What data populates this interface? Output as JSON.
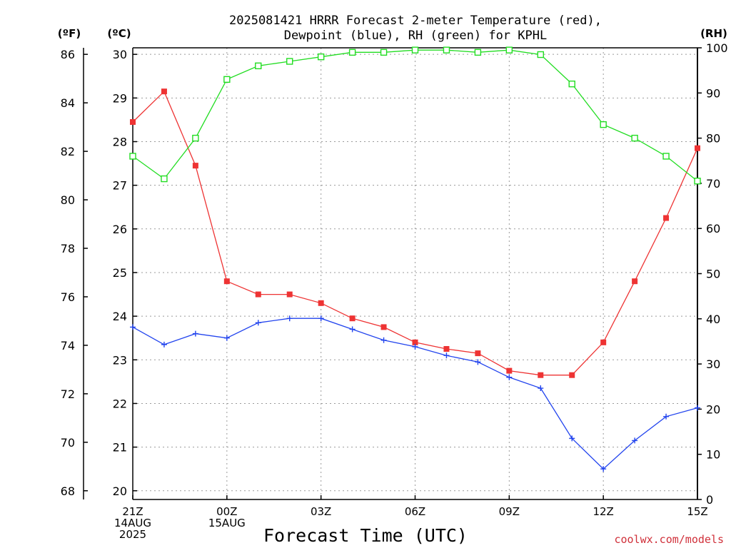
{
  "chart_data": {
    "type": "line",
    "title_lines": [
      "2025081421 HRRR Forecast 2-meter Temperature (red),",
      "Dewpoint (blue), RH (green) for KPHL"
    ],
    "units": {
      "fahrenheit": "(ºF)",
      "celsius": "(ºC)",
      "rh": "(RH)"
    },
    "xlabel": "Forecast Time (UTC)",
    "credit": "coolwx.com/models",
    "x_ticks": [
      {
        "hour": 0,
        "lines": [
          "21Z",
          "14AUG",
          "2025"
        ]
      },
      {
        "hour": 3,
        "lines": [
          "00Z",
          "15AUG"
        ]
      },
      {
        "hour": 6,
        "lines": [
          "03Z"
        ]
      },
      {
        "hour": 9,
        "lines": [
          "06Z"
        ]
      },
      {
        "hour": 12,
        "lines": [
          "09Z"
        ]
      },
      {
        "hour": 15,
        "lines": [
          "12Z"
        ]
      },
      {
        "hour": 18,
        "lines": [
          "15Z"
        ]
      }
    ],
    "xlim": [
      0,
      18
    ],
    "celsius_ticks": [
      20,
      21,
      22,
      23,
      24,
      25,
      26,
      27,
      28,
      29,
      30
    ],
    "ylim_celsius": [
      19.8,
      30.15
    ],
    "fahrenheit_ticks": [
      68,
      70,
      72,
      74,
      76,
      78,
      80,
      82,
      84,
      86
    ],
    "rh_ticks": [
      0,
      10,
      20,
      30,
      40,
      50,
      60,
      70,
      80,
      90,
      100
    ],
    "ylim_rh": [
      0,
      100
    ],
    "grid": true,
    "hours": [
      0,
      1,
      2,
      3,
      4,
      5,
      6,
      7,
      8,
      9,
      10,
      11,
      12,
      13,
      14,
      15,
      16,
      17,
      18
    ],
    "series": [
      {
        "name": "Temperature",
        "axis": "celsius",
        "color": "#ee3333",
        "marker": "filled-square",
        "values": [
          28.45,
          29.15,
          27.45,
          24.8,
          24.5,
          24.5,
          24.3,
          23.95,
          23.75,
          23.4,
          23.25,
          23.15,
          22.75,
          22.65,
          22.65,
          23.4,
          24.8,
          26.25,
          27.85
        ]
      },
      {
        "name": "Dewpoint",
        "axis": "celsius",
        "color": "#2244ee",
        "marker": "plus",
        "values": [
          23.75,
          23.35,
          23.6,
          23.5,
          23.85,
          23.95,
          23.95,
          23.7,
          23.45,
          23.3,
          23.1,
          22.95,
          22.6,
          22.35,
          21.2,
          20.5,
          21.15,
          21.7,
          21.9
        ]
      },
      {
        "name": "RH",
        "axis": "rh",
        "color": "#22dd22",
        "marker": "open-square",
        "values": [
          76,
          71,
          80,
          93,
          96,
          97,
          98,
          99,
          99,
          99.5,
          99.5,
          99,
          99.5,
          98.5,
          92,
          83,
          80,
          76,
          70.5
        ]
      }
    ]
  }
}
